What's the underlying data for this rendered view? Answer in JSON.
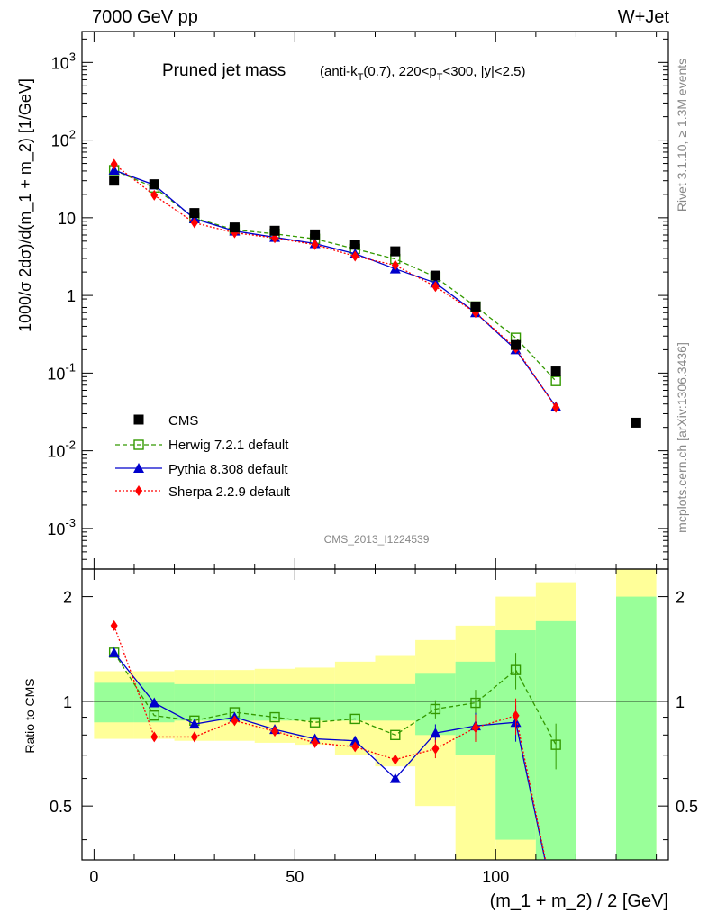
{
  "header": {
    "left": "7000 GeV pp",
    "right": "W+Jet"
  },
  "side": {
    "rivet": "Rivet 3.1.10, ≥ 1.3M events",
    "mcplots": "mcplots.cern.ch [arXiv:1306.3436]"
  },
  "chart_data": {
    "type": "line",
    "title_main": "Pruned jet mass",
    "title_sub": "(anti-kT(0.7), 220<pT<300, |y|<2.5)",
    "analysis": "CMS_2013_I1224539",
    "xlabel": "(m_1 + m_2) / 2 [GeV]",
    "ylabel": "1000/σ 2dσ)/d(m_1 + m_2) [1/GeV]",
    "ratio_ylabel": "Ratio to CMS",
    "xlim": [
      -3,
      143
    ],
    "ylim": [
      0.0003,
      2500
    ],
    "yscale": "log",
    "ratio_ylim": [
      0.35,
      2.4
    ],
    "ratio_yscale": "log",
    "legend_placement": "bottom-left",
    "x_ticks": [
      "0",
      "50",
      "100"
    ],
    "main_y_ticks": [
      "10^-3",
      "10^-2",
      "10^-1",
      "1",
      "10",
      "10^2",
      "10^3"
    ],
    "ratio_y_ticks": [
      "0.5",
      "1",
      "2"
    ],
    "bins": [
      [
        0,
        10
      ],
      [
        10,
        20
      ],
      [
        20,
        30
      ],
      [
        30,
        40
      ],
      [
        40,
        50
      ],
      [
        50,
        60
      ],
      [
        60,
        70
      ],
      [
        70,
        80
      ],
      [
        80,
        90
      ],
      [
        90,
        100
      ],
      [
        100,
        110
      ],
      [
        110,
        120
      ],
      [
        130,
        140
      ]
    ],
    "data": {
      "name": "CMS",
      "x": [
        5,
        15,
        25,
        35,
        45,
        55,
        65,
        75,
        85,
        95,
        105,
        115,
        135
      ],
      "y": [
        30,
        27,
        11.5,
        7.5,
        6.8,
        6.1,
        4.5,
        3.7,
        1.8,
        0.72,
        0.23,
        0.105,
        0.023
      ]
    },
    "band_inner": [
      0.13,
      0.13,
      0.12,
      0.12,
      0.12,
      0.12,
      0.12,
      0.12,
      0.2,
      0.3,
      0.6,
      0.7,
      1.0
    ],
    "band_outer": [
      0.22,
      0.22,
      0.23,
      0.23,
      0.24,
      0.25,
      0.3,
      0.35,
      0.5,
      0.65,
      1.0,
      1.2,
      1.8
    ],
    "series": [
      {
        "name": "Herwig 7.2.1 default",
        "color": "#339900",
        "marker": "open-square",
        "line": "dashed",
        "x": [
          5,
          15,
          25,
          35,
          45,
          55,
          65,
          75,
          85,
          95,
          105,
          115
        ],
        "y": [
          41,
          24.5,
          9.9,
          7.0,
          6.2,
          5.35,
          3.97,
          2.95,
          1.73,
          0.72,
          0.285,
          0.079
        ],
        "ratio": [
          1.38,
          0.91,
          0.88,
          0.93,
          0.9,
          0.87,
          0.89,
          0.8,
          0.95,
          0.99,
          1.23,
          0.75
        ]
      },
      {
        "name": "Pythia 8.308 default",
        "color": "#0000cc",
        "marker": "triangle",
        "line": "solid",
        "x": [
          5,
          15,
          25,
          35,
          45,
          55,
          65,
          75,
          85,
          95,
          105,
          115
        ],
        "y": [
          41,
          26.5,
          9.7,
          6.75,
          5.6,
          4.65,
          3.45,
          2.2,
          1.45,
          0.6,
          0.2,
          0.037
        ],
        "ratio": [
          1.38,
          0.99,
          0.86,
          0.9,
          0.83,
          0.78,
          0.77,
          0.6,
          0.81,
          0.85,
          0.87,
          0.25
        ]
      },
      {
        "name": "Sherpa 2.2.9 default",
        "color": "#ff0000",
        "marker": "diamond",
        "line": "dotted",
        "x": [
          5,
          15,
          25,
          35,
          45,
          55,
          65,
          75,
          85,
          95,
          105,
          115
        ],
        "y": [
          49,
          19.5,
          8.6,
          6.4,
          5.5,
          4.5,
          3.2,
          2.45,
          1.3,
          0.6,
          0.21,
          0.036
        ],
        "ratio": [
          1.65,
          0.79,
          0.79,
          0.88,
          0.82,
          0.76,
          0.74,
          0.68,
          0.73,
          0.84,
          0.91,
          0.25
        ]
      }
    ]
  }
}
